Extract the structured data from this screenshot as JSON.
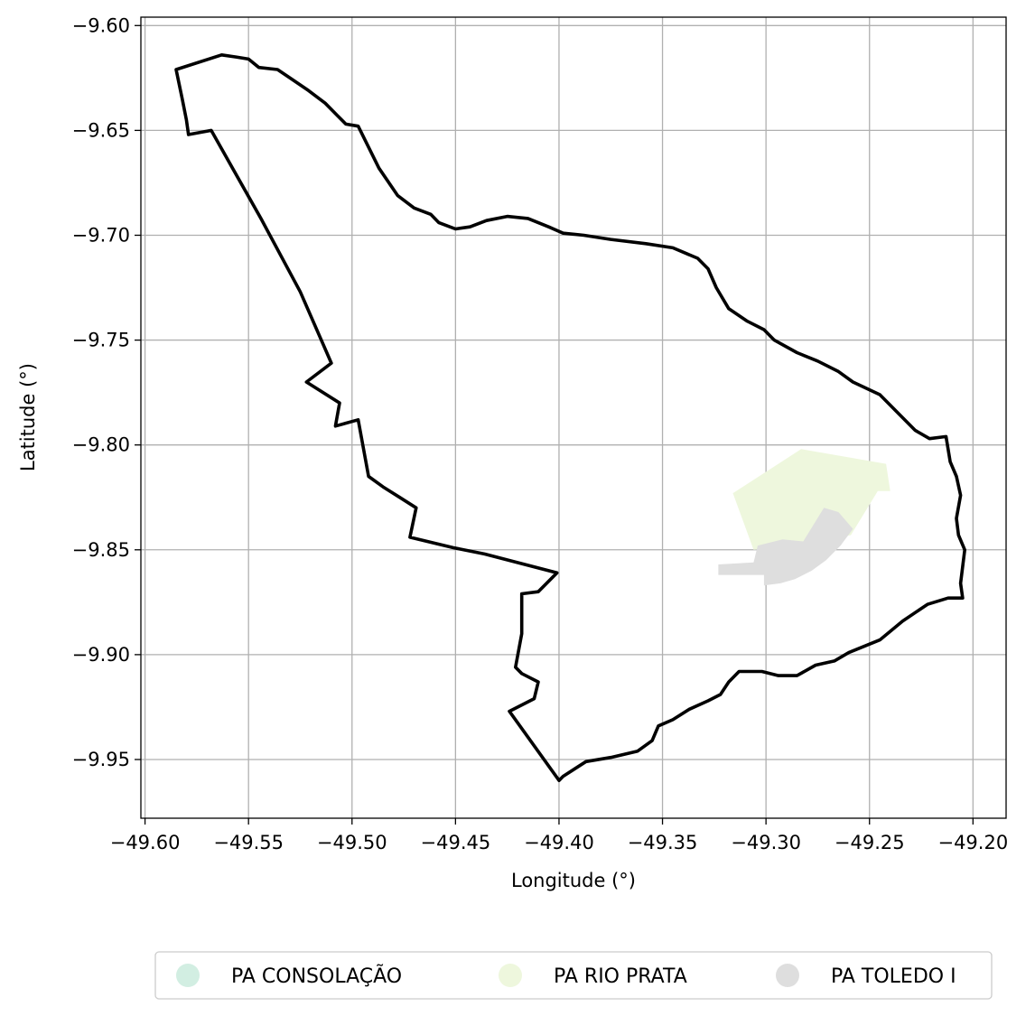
{
  "chart_data": {
    "type": "map",
    "xlabel": "Longitude (°)",
    "ylabel": "Latitude (°)",
    "xlim": [
      -49.602,
      -49.184
    ],
    "ylim": [
      -9.978,
      -9.596
    ],
    "x_ticks": [
      -49.6,
      -49.55,
      -49.5,
      -49.45,
      -49.4,
      -49.35,
      -49.3,
      -49.25,
      -49.2
    ],
    "x_tick_labels": [
      "−49.60",
      "−49.55",
      "−49.50",
      "−49.45",
      "−49.40",
      "−49.35",
      "−49.30",
      "−49.25",
      "−49.20"
    ],
    "y_ticks": [
      -9.6,
      -9.65,
      -9.7,
      -9.75,
      -9.8,
      -9.85,
      -9.9,
      -9.95
    ],
    "y_tick_labels": [
      "−9.60",
      "−9.65",
      "−9.70",
      "−9.75",
      "−9.80",
      "−9.85",
      "−9.90",
      "−9.95"
    ],
    "grid": true,
    "legend_position": "bottom-center",
    "boundary": {
      "stroke": "#000000",
      "coords": [
        [
          -49.585,
          -9.621
        ],
        [
          -49.563,
          -9.614
        ],
        [
          -49.556,
          -9.615
        ],
        [
          -49.55,
          -9.616
        ],
        [
          -49.545,
          -9.62
        ],
        [
          -49.536,
          -9.621
        ],
        [
          -49.53,
          -9.625
        ],
        [
          -49.521,
          -9.631
        ],
        [
          -49.513,
          -9.637
        ],
        [
          -49.507,
          -9.643
        ],
        [
          -49.503,
          -9.647
        ],
        [
          -49.497,
          -9.648
        ],
        [
          -49.493,
          -9.656
        ],
        [
          -49.487,
          -9.668
        ],
        [
          -49.478,
          -9.681
        ],
        [
          -49.47,
          -9.687
        ],
        [
          -49.462,
          -9.69
        ],
        [
          -49.458,
          -9.694
        ],
        [
          -49.45,
          -9.697
        ],
        [
          -49.443,
          -9.696
        ],
        [
          -49.435,
          -9.693
        ],
        [
          -49.425,
          -9.691
        ],
        [
          -49.415,
          -9.692
        ],
        [
          -49.405,
          -9.696
        ],
        [
          -49.398,
          -9.699
        ],
        [
          -49.388,
          -9.7
        ],
        [
          -49.375,
          -9.702
        ],
        [
          -49.358,
          -9.704
        ],
        [
          -49.345,
          -9.706
        ],
        [
          -49.333,
          -9.711
        ],
        [
          -49.328,
          -9.716
        ],
        [
          -49.324,
          -9.725
        ],
        [
          -49.318,
          -9.735
        ],
        [
          -49.309,
          -9.741
        ],
        [
          -49.301,
          -9.745
        ],
        [
          -49.296,
          -9.75
        ],
        [
          -49.285,
          -9.756
        ],
        [
          -49.275,
          -9.76
        ],
        [
          -49.265,
          -9.765
        ],
        [
          -49.258,
          -9.77
        ],
        [
          -49.245,
          -9.776
        ],
        [
          -49.237,
          -9.784
        ],
        [
          -49.228,
          -9.793
        ],
        [
          -49.221,
          -9.797
        ],
        [
          -49.213,
          -9.796
        ],
        [
          -49.211,
          -9.808
        ],
        [
          -49.208,
          -9.815
        ],
        [
          -49.206,
          -9.824
        ],
        [
          -49.208,
          -9.835
        ],
        [
          -49.207,
          -9.843
        ],
        [
          -49.204,
          -9.85
        ],
        [
          -49.205,
          -9.858
        ],
        [
          -49.206,
          -9.866
        ],
        [
          -49.205,
          -9.873
        ],
        [
          -49.212,
          -9.873
        ],
        [
          -49.222,
          -9.876
        ],
        [
          -49.234,
          -9.884
        ],
        [
          -49.245,
          -9.893
        ],
        [
          -49.26,
          -9.899
        ],
        [
          -49.267,
          -9.903
        ],
        [
          -49.276,
          -9.905
        ],
        [
          -49.285,
          -9.91
        ],
        [
          -49.294,
          -9.91
        ],
        [
          -49.302,
          -9.908
        ],
        [
          -49.313,
          -9.908
        ],
        [
          -49.318,
          -9.913
        ],
        [
          -49.322,
          -9.919
        ],
        [
          -49.328,
          -9.922
        ],
        [
          -49.337,
          -9.926
        ],
        [
          -49.345,
          -9.931
        ],
        [
          -49.352,
          -9.934
        ],
        [
          -49.355,
          -9.941
        ],
        [
          -49.362,
          -9.946
        ],
        [
          -49.375,
          -9.949
        ],
        [
          -49.387,
          -9.951
        ],
        [
          -49.398,
          -9.958
        ],
        [
          -49.4,
          -9.96
        ],
        [
          -49.424,
          -9.927
        ],
        [
          -49.412,
          -9.921
        ],
        [
          -49.41,
          -9.913
        ],
        [
          -49.418,
          -9.909
        ],
        [
          -49.421,
          -9.906
        ],
        [
          -49.418,
          -9.89
        ],
        [
          -49.418,
          -9.871
        ],
        [
          -49.41,
          -9.87
        ],
        [
          -49.401,
          -9.861
        ],
        [
          -49.436,
          -9.852
        ],
        [
          -49.451,
          -9.849
        ],
        [
          -49.472,
          -9.844
        ],
        [
          -49.469,
          -9.83
        ],
        [
          -49.477,
          -9.825
        ],
        [
          -49.485,
          -9.82
        ],
        [
          -49.492,
          -9.815
        ],
        [
          -49.497,
          -9.788
        ],
        [
          -49.508,
          -9.791
        ],
        [
          -49.506,
          -9.78
        ],
        [
          -49.522,
          -9.77
        ],
        [
          -49.51,
          -9.761
        ],
        [
          -49.525,
          -9.727
        ],
        [
          -49.544,
          -9.692
        ],
        [
          -49.568,
          -9.65
        ],
        [
          -49.579,
          -9.652
        ],
        [
          -49.58,
          -9.645
        ],
        [
          -49.582,
          -9.635
        ],
        [
          -49.585,
          -9.621
        ]
      ]
    },
    "series": [
      {
        "name": "PA CONSOLAÇÃO",
        "color": "#d2eee2",
        "coords": []
      },
      {
        "name": "PA RIO PRATA",
        "color": "#eef7dd",
        "coords": [
          [
            -49.316,
            -9.823
          ],
          [
            -49.283,
            -9.802
          ],
          [
            -49.242,
            -9.809
          ],
          [
            -49.24,
            -9.822
          ],
          [
            -49.246,
            -9.822
          ],
          [
            -49.259,
            -9.843
          ],
          [
            -49.283,
            -9.848
          ],
          [
            -49.306,
            -9.85
          ]
        ]
      },
      {
        "name": "PA TOLEDO I",
        "color": "#dedede",
        "coords": [
          [
            -49.304,
            -9.848
          ],
          [
            -49.292,
            -9.845
          ],
          [
            -49.282,
            -9.846
          ],
          [
            -49.272,
            -9.83
          ],
          [
            -49.265,
            -9.832
          ],
          [
            -49.258,
            -9.84
          ],
          [
            -49.264,
            -9.848
          ],
          [
            -49.271,
            -9.855
          ],
          [
            -49.278,
            -9.86
          ],
          [
            -49.286,
            -9.864
          ],
          [
            -49.293,
            -9.866
          ],
          [
            -49.301,
            -9.867
          ],
          [
            -49.301,
            -9.862
          ],
          [
            -49.323,
            -9.862
          ],
          [
            -49.323,
            -9.857
          ],
          [
            -49.306,
            -9.856
          ]
        ]
      }
    ]
  }
}
